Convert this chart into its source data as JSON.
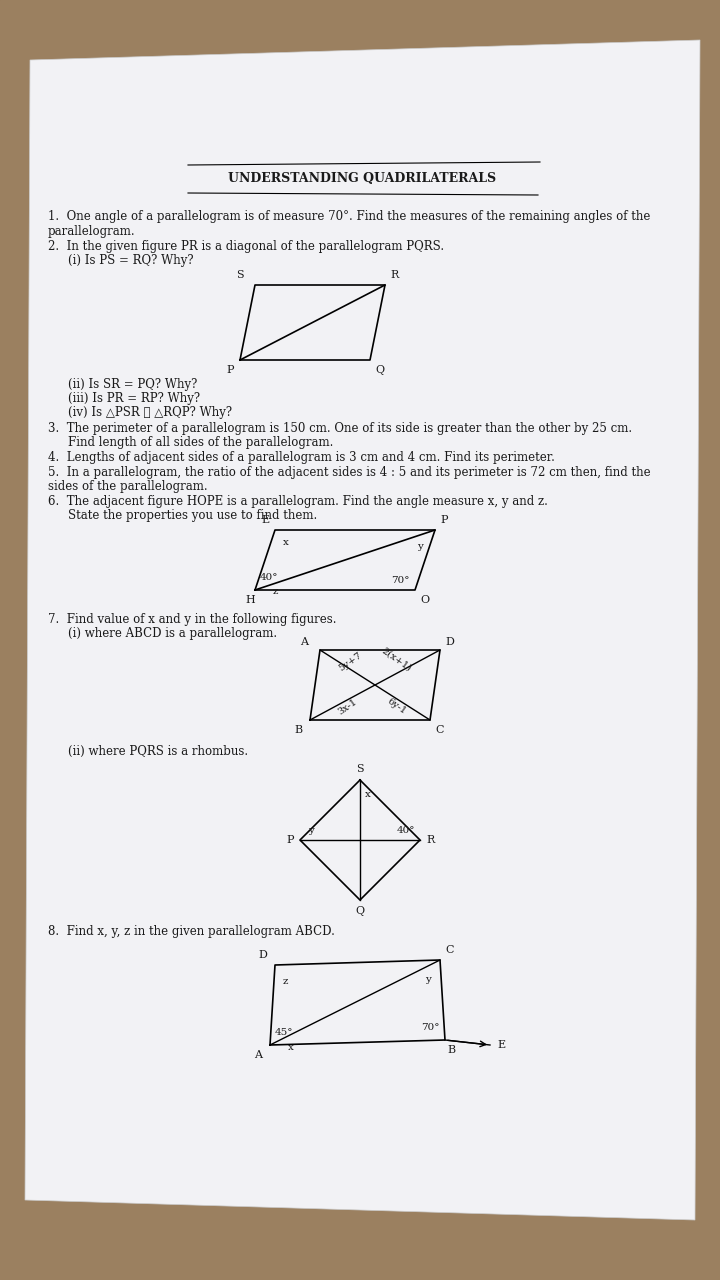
{
  "title": "Understanding Quadrilaterals",
  "bg_paper": "#e8e8ee",
  "bg_wood_top": "#c8a96e",
  "bg_wood_bottom": "#c8a96e",
  "paper_color": "#f0f0f5",
  "text_color": "#1a1a1a",
  "questions": [
    "1.  One angle of a parallelogram is of measure 70°. Find the measures of the remaining angles of the\nparallelogram.",
    "2.  In the given figure PR is a diagonal of the parallelogram PQRS.\n    (i) Is PS = RQ? Why?",
    "    (ii) Is SR = PQ? Why?\n    (iii) Is PR = RP? Why?\n    (iv) Is △PSR ≅ △RQP? Why?",
    "3.  The perimeter of a parallelogram is 150 cm. One of its side is greater than the other by 25 cm.\n    Find length of all sides of the parallelogram.",
    "4.  Lengths of adjacent sides of a parallelogram is 3 cm and 4 cm. Find its perimeter.",
    "5.  In a parallelogram, the ratio of the adjacent sides is 4 : 5 and its perimeter is 72 cm then, find the\nsides of the parallelogram.",
    "6.  The adjacent figure HOPE is a parallelogram. Find the angle measure x, y and z.\n    State the properties you use to find them.",
    "7.  Find value of x and y in the following figures.\n    (i) where ABCD is a parallelogram.",
    "    (ii) where PQRS is a rhombus.",
    "8.  Find x, y, z in the given parallelogram ABCD."
  ]
}
